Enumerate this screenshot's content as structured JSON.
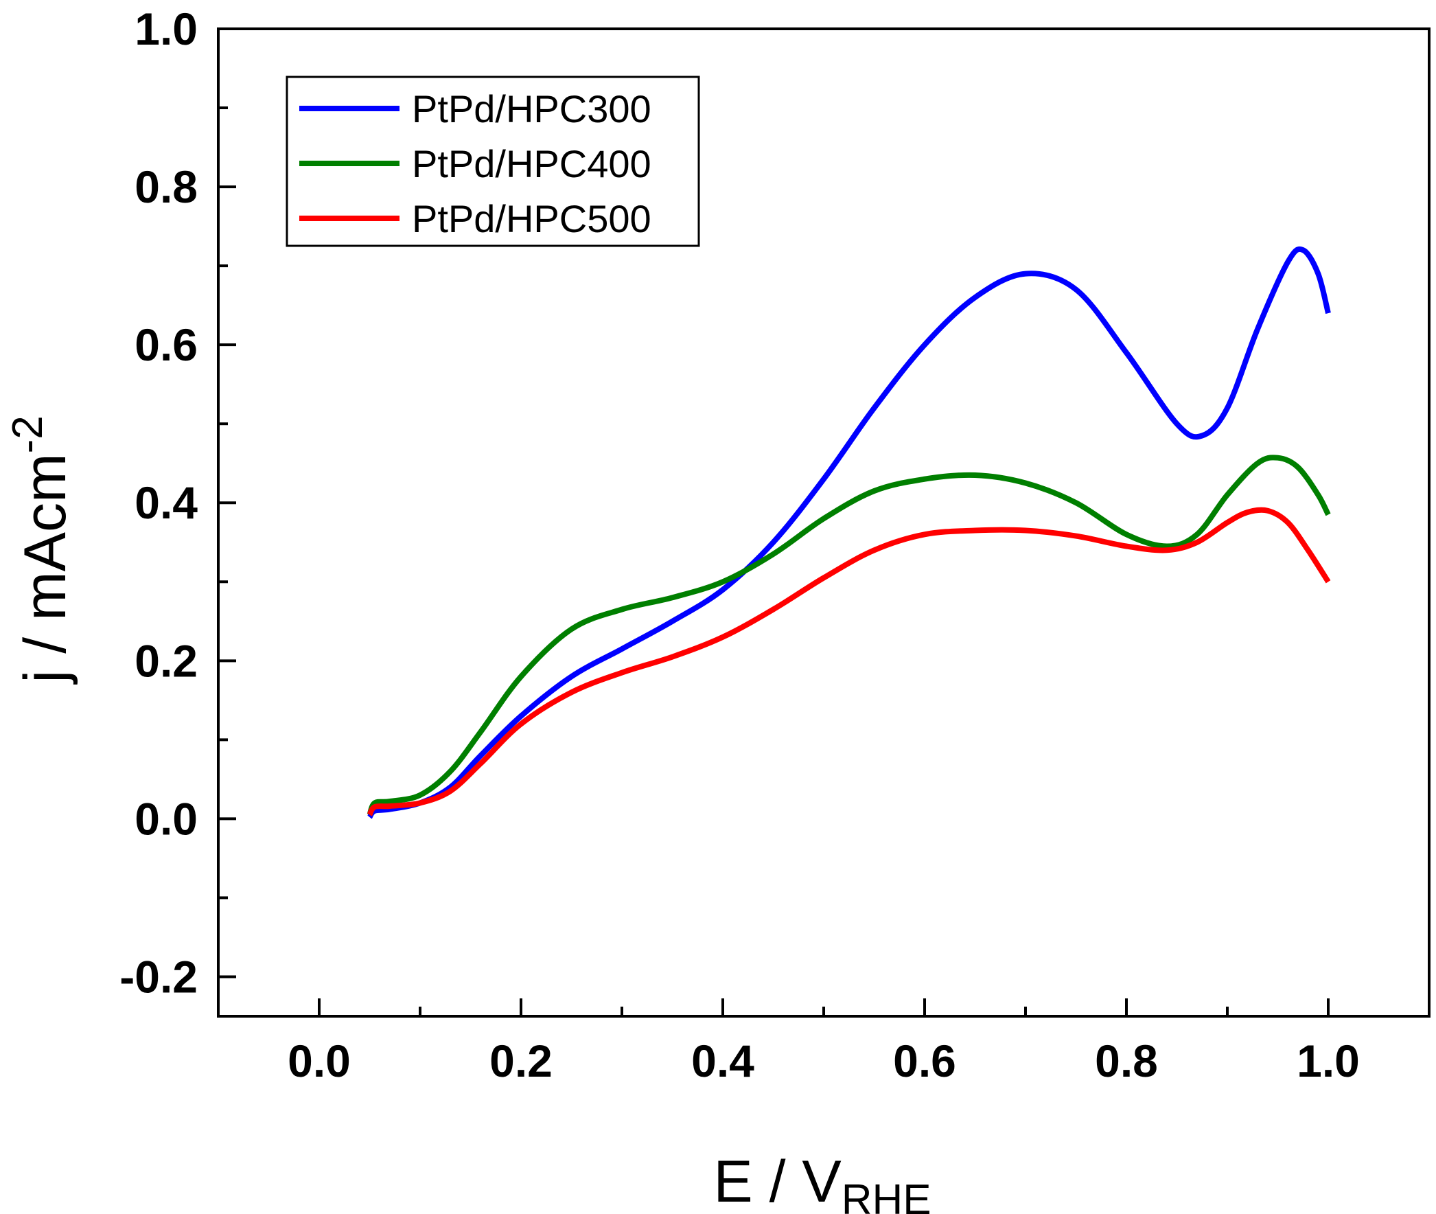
{
  "chart_data": {
    "type": "line",
    "title": "",
    "xlabel": "E / V",
    "xlabel_sub": "RHE",
    "ylabel": "j / mAcm",
    "ylabel_sup": "-2",
    "xlim": [
      -0.1,
      1.1
    ],
    "ylim": [
      -0.25,
      1.0
    ],
    "xticks": [
      {
        "value": 0.0,
        "label": "0.0"
      },
      {
        "value": 0.2,
        "label": "0.2"
      },
      {
        "value": 0.4,
        "label": "0.4"
      },
      {
        "value": 0.6,
        "label": "0.6"
      },
      {
        "value": 0.8,
        "label": "0.8"
      },
      {
        "value": 1.0,
        "label": "1.0"
      }
    ],
    "xminor": [
      -0.1,
      0.1,
      0.3,
      0.5,
      0.7,
      0.9
    ],
    "yticks": [
      {
        "value": -0.2,
        "label": "-0.2"
      },
      {
        "value": 0.0,
        "label": "0.0"
      },
      {
        "value": 0.2,
        "label": "0.2"
      },
      {
        "value": 0.4,
        "label": "0.4"
      },
      {
        "value": 0.6,
        "label": "0.6"
      },
      {
        "value": 0.8,
        "label": "0.8"
      },
      {
        "value": 1.0,
        "label": "1.0"
      }
    ],
    "yminor": [
      -0.1,
      0.1,
      0.3,
      0.5,
      0.7,
      0.9
    ],
    "legend_position": "top-left",
    "series": [
      {
        "name": "PtPd/HPC300",
        "color": "#0000ff",
        "x": [
          0.05,
          0.055,
          0.07,
          0.1,
          0.13,
          0.16,
          0.2,
          0.25,
          0.3,
          0.35,
          0.4,
          0.45,
          0.5,
          0.55,
          0.6,
          0.65,
          0.7,
          0.75,
          0.8,
          0.85,
          0.875,
          0.9,
          0.93,
          0.96,
          0.975,
          0.99,
          1.0
        ],
        "y": [
          0.002,
          0.01,
          0.012,
          0.02,
          0.04,
          0.08,
          0.13,
          0.18,
          0.215,
          0.25,
          0.29,
          0.35,
          0.43,
          0.52,
          0.6,
          0.66,
          0.69,
          0.67,
          0.59,
          0.5,
          0.485,
          0.52,
          0.62,
          0.705,
          0.72,
          0.69,
          0.64
        ]
      },
      {
        "name": "PtPd/HPC400",
        "color": "#007f00",
        "x": [
          0.05,
          0.055,
          0.07,
          0.1,
          0.13,
          0.16,
          0.2,
          0.25,
          0.3,
          0.35,
          0.4,
          0.45,
          0.5,
          0.55,
          0.6,
          0.65,
          0.7,
          0.75,
          0.8,
          0.84,
          0.87,
          0.9,
          0.93,
          0.95,
          0.97,
          0.99,
          1.0
        ],
        "y": [
          0.005,
          0.02,
          0.022,
          0.03,
          0.06,
          0.11,
          0.18,
          0.24,
          0.265,
          0.28,
          0.3,
          0.335,
          0.38,
          0.415,
          0.43,
          0.435,
          0.425,
          0.4,
          0.36,
          0.345,
          0.36,
          0.41,
          0.45,
          0.457,
          0.445,
          0.41,
          0.385
        ]
      },
      {
        "name": "PtPd/HPC500",
        "color": "#ff0000",
        "x": [
          0.05,
          0.055,
          0.07,
          0.1,
          0.13,
          0.16,
          0.2,
          0.25,
          0.3,
          0.35,
          0.4,
          0.45,
          0.5,
          0.55,
          0.6,
          0.65,
          0.7,
          0.75,
          0.8,
          0.84,
          0.87,
          0.9,
          0.92,
          0.94,
          0.96,
          0.98,
          1.0
        ],
        "y": [
          0.005,
          0.015,
          0.016,
          0.02,
          0.035,
          0.07,
          0.12,
          0.16,
          0.185,
          0.205,
          0.23,
          0.265,
          0.305,
          0.34,
          0.36,
          0.365,
          0.365,
          0.358,
          0.345,
          0.34,
          0.35,
          0.375,
          0.388,
          0.39,
          0.375,
          0.34,
          0.3
        ]
      }
    ]
  }
}
